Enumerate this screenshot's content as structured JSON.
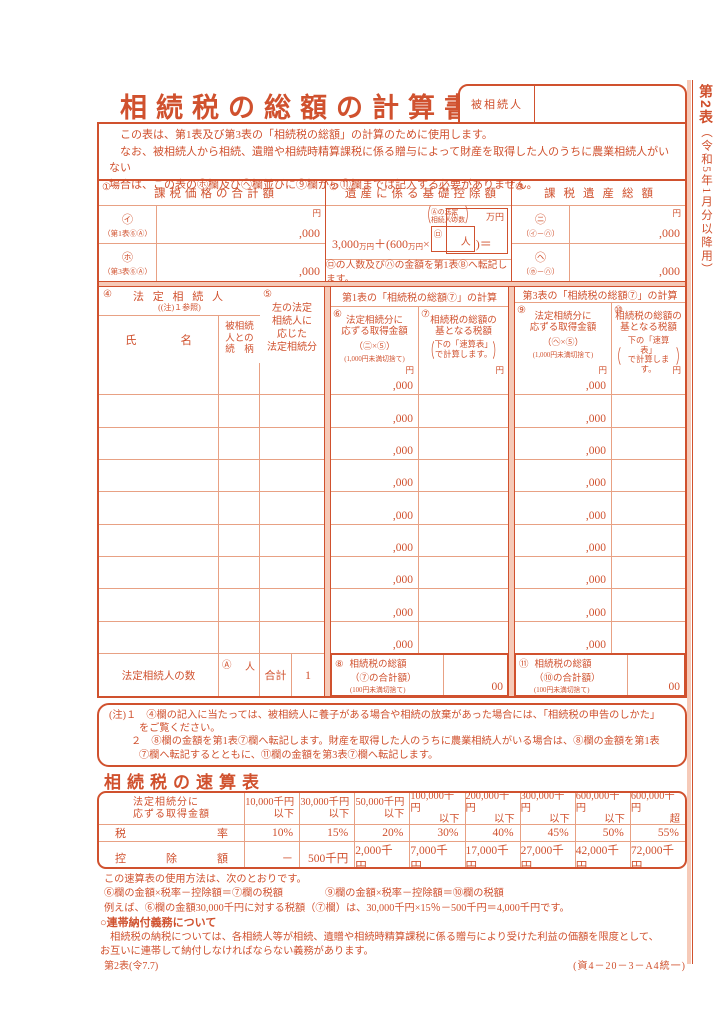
{
  "colors": {
    "accent": "#d0512e",
    "light_border": "#e8a184",
    "pink": "#f6cab8"
  },
  "side": {
    "main": "第2表",
    "sub": "（令和5年1月分以降用）"
  },
  "header": {
    "title": "相続税の総額の計算書",
    "decedent_label": "被相続人",
    "decedent_value": ""
  },
  "intro": {
    "l1": "　この表は、第1表及び第3表の「相続税の総額」の計算のために使用します。",
    "l2": "　なお、被相続人から相続、遺贈や相続時精算課税に係る贈与によって財産を取得した人のうちに農業相続人がいない",
    "l3": "場合は、この表の㋭欄及び㋬欄並びに⑨欄から⑪欄までは記入する必要がありません。"
  },
  "s1": {
    "num": "①",
    "title": "課税価格の合計額",
    "r1_code": "㋑",
    "r1_ref": "（第1表⑥Ⓐ）",
    "r2_code": "㋭",
    "r2_ref": "（第3表⑥Ⓐ）",
    "yen": "円",
    "k000": ",000"
  },
  "s2": {
    "num": "②",
    "title": "遺産に係る基礎控除額",
    "f1": "3,000",
    "u1": "万円",
    "f2": "＋(600",
    "u2": "万円",
    "f3": "×",
    "f4": ")＝",
    "hint1": "Ⓐの法定",
    "hint2": "相続人の数",
    "po": "（",
    "pc": "）",
    "ro": "㋺",
    "nin": "人",
    "ha": "㋩",
    "man_yen": "万円",
    "note": "㋺の人数及び㋩の金額を第1表Ⓑへ転記します。"
  },
  "s3": {
    "num": "③",
    "title": "課税遺産総額",
    "r1_code": "㋥",
    "r1_ref": "（㋑－㋩）",
    "r2_code": "㋬",
    "r2_ref": "（㋭－㋩）",
    "yen": "円",
    "k000": ",000"
  },
  "t": {
    "n4": "④",
    "t4": "法 定 相 続 人",
    "t4b": "((注)１参照)",
    "name_l": "氏",
    "name_r": "名",
    "rel_h": "被相続\n人との\n続　柄",
    "n5": "⑤",
    "t5": "左の法定\n相続人に\n応じた\n法定相続分",
    "calc1": "第1表の「相続税の総額⑦」の計算",
    "calc3": "第3表の「相続税の総額⑦」の計算",
    "n6": "⑥",
    "t6": "法定相続分に\n応ずる取得金額",
    "t6f": "（㋥×⑤）",
    "t6n": "(1,000円未満切捨て)",
    "n7": "⑦",
    "t7": "相続税の総額の\n基となる税額",
    "t7n": "下の「速算表」\nで計算します。",
    "n9": "⑨",
    "t9": "法定相続分に\n応ずる取得金額",
    "t9f": "（㋬×⑤）",
    "t9n": "(1,000円未満切捨て)",
    "n10": "⑩",
    "t10": "相続税の総額の\n基となる税額",
    "t10n": "下の「速算表」\nで計算します。",
    "po": "（",
    "pc": "）",
    "yen": "円",
    "k000": ",000",
    "count_label": "法定相続人の数",
    "countA": "Ⓐ",
    "nin": "人",
    "total_label": "合計",
    "total_val": "1",
    "n8": "⑧",
    "l8a": "相続税の総額",
    "l8b": "（⑦の合計額）",
    "l8c": "(100円未満切捨て)",
    "v8": "00",
    "n11": "⑪",
    "l11a": "相続税の総額",
    "l11b": "（⑩の合計額）",
    "l11c": "(100円未満切捨て)",
    "v11": "00"
  },
  "notes": {
    "l1": "(注)１　④欄の記入に当たっては、被相続人に養子がある場合や相続の放棄があった場合には、「相続税の申告のしかた」",
    "l2": "をご覧ください。",
    "l3": "２　⑧欄の金額を第1表⑦欄へ転記します。財産を取得した人のうちに農業相続人がいる場合は、⑧欄の金額を第1表",
    "l4": "⑦欄へ転記するとともに、⑪欄の金額を第3表⑦欄へ転記します。"
  },
  "quick": {
    "title": "相続税の速算表",
    "col_label": "法定相続分に\n応ずる取得金額",
    "brackets": [
      {
        "a": "10,000千円",
        "q": "以下"
      },
      {
        "a": "30,000千円",
        "q": "以下"
      },
      {
        "a": "50,000千円",
        "q": "以下"
      },
      {
        "a": "100,000千円",
        "q": "以下"
      },
      {
        "a": "200,000千円",
        "q": "以下"
      },
      {
        "a": "300,000千円",
        "q": "以下"
      },
      {
        "a": "600,000千円",
        "q": "以下"
      },
      {
        "a": "600,000千円",
        "q": "超"
      }
    ],
    "rate_l": "税",
    "rate_r": "率",
    "rates": [
      "10%",
      "15%",
      "20%",
      "30%",
      "40%",
      "45%",
      "50%",
      "55%"
    ],
    "ded_l": "控",
    "ded_m": "除",
    "ded_r": "額",
    "deds": [
      "－",
      "500千円",
      "2,000千円",
      "7,000千円",
      "17,000千円",
      "27,000千円",
      "42,000千円",
      "72,000千円"
    ]
  },
  "usage": {
    "l1": "この速算表の使用方法は、次のとおりです。",
    "l2a": "⑥欄の金額×税率－控除額＝⑦欄の税額",
    "l2b": "⑨欄の金額×税率－控除額＝⑩欄の税額",
    "l3": "例えば、⑥欄の金額30,000千円に対する税額（⑦欄）は、30,000千円×15％－500千円＝4,000千円です。"
  },
  "joint": {
    "heading": "○連帯納付義務について",
    "l1": "　相続税の納税については、各相続人等が相続、遺贈や相続時精算課税に係る贈与により受けた利益の価額を限度として、",
    "l2": "お互いに連帯して納付しなければならない義務があります。"
  },
  "footer": {
    "left": "第2表(令7.7)",
    "right": "(資4－20－3－A4統一)"
  }
}
